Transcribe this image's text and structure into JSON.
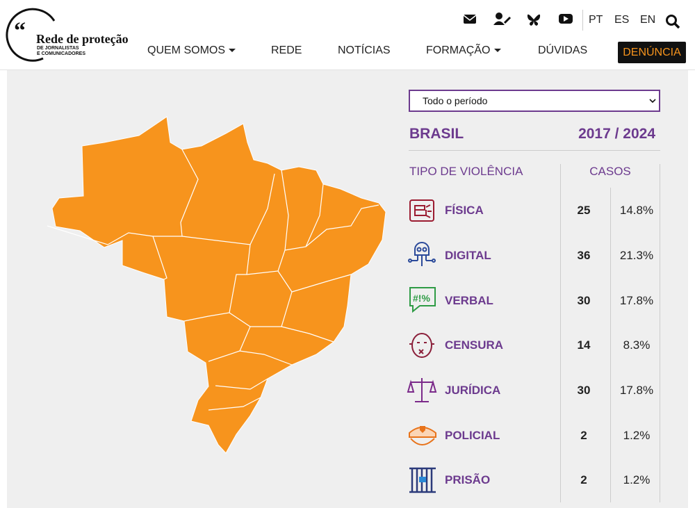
{
  "header": {
    "logo": {
      "title": "Rede de proteção",
      "line1": "DE JORNALISTAS",
      "line2": "E COMUNICADORES"
    },
    "languages": [
      "PT",
      "ES",
      "EN"
    ],
    "nav": [
      "QUEM SOMOS",
      "REDE",
      "NOTÍCIAS",
      "FORMAÇÃO",
      "DÚVIDAS"
    ],
    "cta": "DENÚNCIA"
  },
  "filter": {
    "selected": "Todo o período"
  },
  "summary": {
    "region": "BRASIL",
    "period": "2017 / 2024"
  },
  "table": {
    "headers": [
      "TIPO DE VIOLÊNCIA",
      "CASOS"
    ],
    "rows": [
      [
        "FÍSICA",
        25,
        "14.8%"
      ],
      [
        "DIGITAL",
        36,
        "21.3%"
      ],
      [
        "VERBAL",
        30,
        "17.8%"
      ],
      [
        "CENSURA",
        14,
        "8.3%"
      ],
      [
        "JURÍDICA",
        30,
        "17.8%"
      ],
      [
        "POLICIAL",
        2,
        "1.2%"
      ],
      [
        "PRISÃO",
        2,
        "1.2%"
      ]
    ]
  }
}
